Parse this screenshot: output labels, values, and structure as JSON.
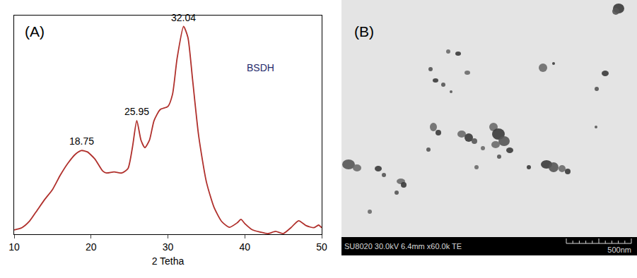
{
  "chart_data": {
    "type": "line",
    "title": "(A)",
    "x_label": "2 Tetha",
    "x": [
      10,
      11,
      12,
      13,
      14,
      15,
      16,
      17,
      18,
      18.75,
      19.5,
      20.5,
      21.5,
      22,
      23,
      24,
      24.8,
      25.4,
      25.95,
      26.5,
      27,
      27.6,
      28.2,
      29,
      30,
      30.6,
      31.2,
      32.04,
      32.6,
      33.2,
      34,
      35,
      36,
      37,
      38,
      39,
      39.5,
      40,
      41,
      42,
      43,
      44,
      45,
      46,
      47,
      48,
      49,
      49.6,
      50
    ],
    "values": [
      2,
      3,
      6,
      11,
      16,
      20.5,
      27,
      32.5,
      36.7,
      38.3,
      37.7,
      34.4,
      29,
      28,
      28.5,
      28,
      30,
      40,
      52,
      43,
      39.6,
      43,
      52,
      57,
      58.4,
      64,
      80.5,
      95,
      90,
      71,
      45,
      24,
      12.3,
      5.8,
      3.2,
      5.2,
      6.8,
      4.9,
      2,
      1,
      0.3,
      1.3,
      0.3,
      3,
      6.2,
      3.9,
      3,
      4.2,
      3
    ],
    "color": "#b0302c",
    "xlim": [
      10,
      50
    ],
    "xticks": [
      10,
      20,
      30,
      40,
      50
    ],
    "ylim": [
      0,
      100
    ],
    "yticks": [],
    "tick_labels": "x",
    "grid": false,
    "annotations": [
      {
        "text": "18.75",
        "x": 18.75,
        "y": 38.3
      },
      {
        "text": "25.95",
        "x": 25.95,
        "y": 52
      },
      {
        "text": "32.04",
        "x": 32.04,
        "y": 95
      },
      {
        "text": "BSDH",
        "x": 42,
        "y": 72,
        "color": "#1f2a6b"
      }
    ]
  },
  "image_panel": {
    "label": "(B)",
    "info_bar": "SU8020 30.0kV 6.4mm x60.0k TE",
    "scale_bar": "500nm"
  }
}
